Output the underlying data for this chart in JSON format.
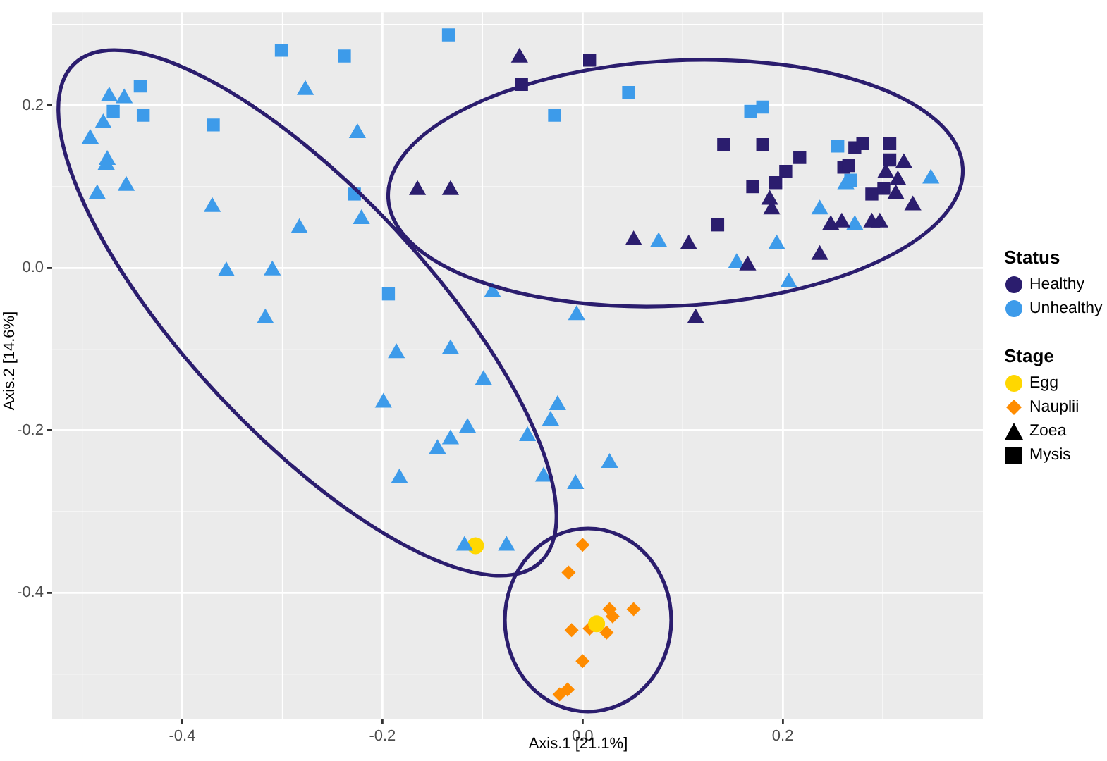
{
  "chart_data": {
    "type": "scatter",
    "xlabel": "Axis.1 [21.1%]",
    "ylabel": "Axis.2 [14.6%]",
    "xlim": [
      -0.53,
      0.4
    ],
    "ylim": [
      -0.555,
      0.315
    ],
    "xticks": [
      -0.4,
      -0.2,
      {
        "value": 0,
        "label": "0.0"
      },
      0.2
    ],
    "yticks": [
      -0.4,
      -0.2,
      {
        "value": 0,
        "label": "0.0"
      },
      0.2
    ],
    "grid": true,
    "legend": "right",
    "legend_title": "Status",
    "annotations": [
      "Stage",
      "Zoea",
      "Mysis"
    ],
    "series": [
      {
        "name": "Healthy",
        "color": "#2b1d6e",
        "marker": "triangle",
        "x": [
          -0.063,
          -0.165,
          -0.132,
          0.051,
          0.106,
          0.165,
          0.113,
          0.237,
          0.187,
          0.189,
          0.248,
          0.259,
          0.289,
          0.297,
          0.321,
          0.303,
          0.315,
          0.313,
          0.33
        ],
        "values": [
          0.259,
          0.096,
          0.096,
          0.034,
          0.029,
          0.003,
          -0.062,
          0.016,
          0.084,
          0.072,
          0.053,
          0.056,
          0.056,
          0.056,
          0.129,
          0.117,
          0.108,
          0.091,
          0.077
        ]
      },
      {
        "color": "#2b1d6e",
        "marker": "square",
        "x": [
          0.007,
          -0.061,
          0.141,
          0.18,
          0.217,
          0.203,
          0.193,
          0.17,
          0.135,
          0.272,
          0.28,
          0.307,
          0.307,
          0.261,
          0.266,
          0.289,
          0.301
        ],
        "values": [
          0.256,
          0.226,
          0.152,
          0.152,
          0.136,
          0.119,
          0.105,
          0.1,
          0.053,
          0.148,
          0.153,
          0.153,
          0.133,
          0.124,
          0.126,
          0.091,
          0.098
        ]
      },
      {
        "name": "Unhealthy",
        "color": "#3d9bea",
        "marker": "triangle",
        "x": [
          -0.473,
          -0.458,
          -0.479,
          -0.492,
          -0.475,
          -0.476,
          -0.456,
          -0.485,
          -0.37,
          -0.283,
          -0.356,
          -0.31,
          -0.277,
          -0.225,
          -0.221,
          -0.317,
          -0.09,
          -0.006,
          -0.186,
          -0.132,
          -0.099,
          -0.199,
          -0.025,
          -0.032,
          -0.115,
          -0.132,
          -0.145,
          -0.055,
          0.027,
          -0.183,
          -0.039,
          -0.007,
          -0.118,
          -0.076,
          0.154,
          0.206,
          0.076,
          0.237,
          0.272,
          0.194,
          0.348,
          0.263
        ],
        "values": [
          0.211,
          0.209,
          0.178,
          0.159,
          0.133,
          0.127,
          0.101,
          0.091,
          0.075,
          0.049,
          -0.004,
          -0.003,
          0.219,
          0.166,
          0.06,
          -0.062,
          -0.03,
          -0.058,
          -0.105,
          -0.1,
          -0.138,
          -0.166,
          -0.169,
          -0.188,
          -0.197,
          -0.211,
          -0.223,
          -0.207,
          -0.24,
          -0.259,
          -0.257,
          -0.266,
          -0.342,
          -0.342,
          0.006,
          -0.018,
          0.032,
          0.072,
          0.053,
          0.029,
          0.11,
          0.103
        ]
      },
      {
        "color": "#3d9bea",
        "marker": "square",
        "x": [
          -0.301,
          -0.238,
          -0.442,
          -0.439,
          -0.469,
          -0.369,
          -0.228,
          -0.194,
          -0.134,
          0.046,
          -0.028,
          0.168,
          0.18,
          0.255,
          0.268
        ],
        "values": [
          0.268,
          0.261,
          0.224,
          0.188,
          0.193,
          0.176,
          0.091,
          -0.032,
          0.287,
          0.216,
          0.188,
          0.193,
          0.198,
          0.15,
          0.108
        ]
      },
      {
        "name": "Egg",
        "color": "#ffd700",
        "marker": "circle",
        "x": [
          -0.107,
          0.014
        ],
        "values": [
          -0.342,
          -0.438
        ]
      },
      {
        "name": "Nauplii",
        "color": "#ff8c00",
        "marker": "diamond",
        "x": [
          0.0,
          -0.014,
          0.027,
          0.03,
          0.051,
          -0.011,
          0.007,
          0.024,
          0.0,
          -0.015,
          -0.023
        ],
        "values": [
          -0.341,
          -0.375,
          -0.42,
          -0.429,
          -0.42,
          -0.446,
          -0.444,
          -0.449,
          -0.484,
          -0.519,
          -0.525
        ]
      }
    ]
  }
}
